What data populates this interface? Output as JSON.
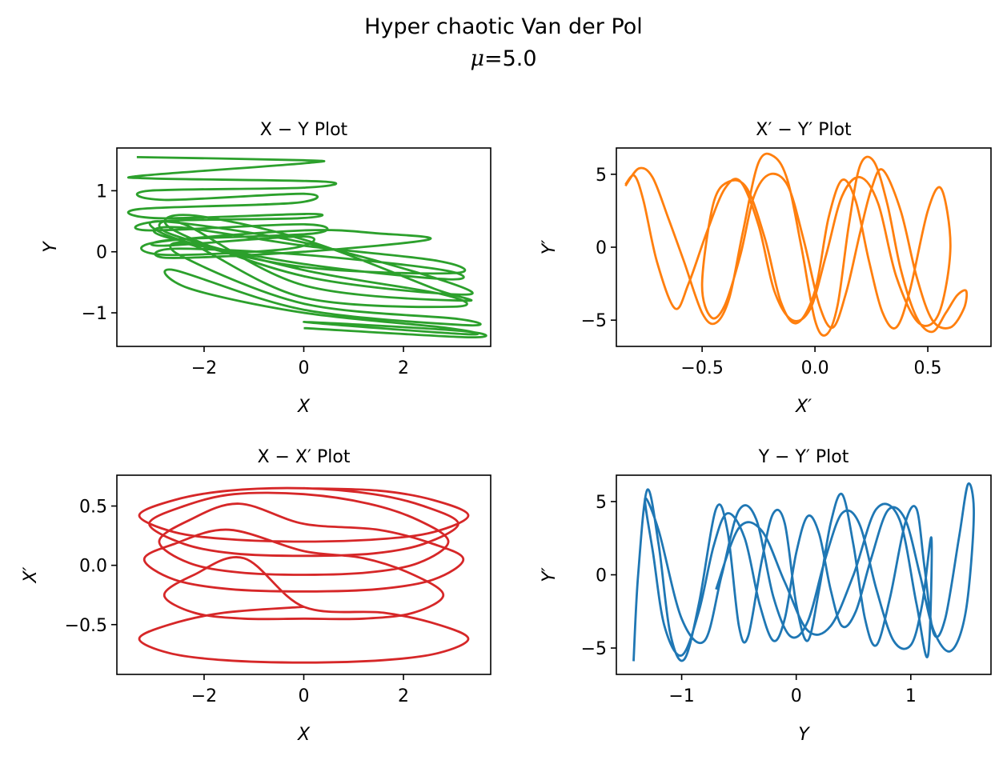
{
  "suptitle": {
    "line1": "Hyper chaotic Van der Pol",
    "mu_symbol": "μ",
    "mu_rest": "=5.0"
  },
  "chart_data": [
    {
      "type": "line",
      "title": "X − Y Plot",
      "xlabel": "X",
      "ylabel": "Y",
      "xlim": [
        -3.75,
        3.75
      ],
      "ylim": [
        -1.55,
        1.7
      ],
      "xticks": [
        -2,
        0,
        2
      ],
      "xtick_labels": [
        "−2",
        "0",
        "2"
      ],
      "yticks": [
        -1,
        0,
        1
      ],
      "ytick_labels": [
        "−1",
        "0",
        "1"
      ],
      "color": "#2ca02c",
      "series": [
        {
          "x": [
            -3.35,
            0.0,
            0.0,
            -3.2,
            -3.0,
            0.4,
            0.0,
            -3.1,
            -2.8,
            0.0,
            -0.2,
            -3.3,
            -2.9,
            0.1,
            -0.1,
            -2.9,
            -3.1,
            0.0,
            0.2,
            -2.6,
            -2.8,
            0.0,
            -0.3,
            -2.8,
            -3.0,
            0.0,
            1.5,
            2.5,
            0.0,
            -2.7,
            -2.6,
            0.0,
            2.8,
            2.9,
            0.0,
            -2.8,
            -2.5,
            0.0,
            2.7,
            3.0,
            0.0,
            -2.5,
            -2.9,
            0.0,
            2.9,
            3.1,
            0.0,
            -2.6,
            -2.3,
            0.0,
            2.6,
            3.2,
            0.0,
            -2.4,
            -2.7,
            0.0,
            2.8,
            3.0,
            0.0,
            -2.2,
            -2.5,
            0.0,
            3.1,
            3.2,
            0.0,
            -2.6,
            -2.3,
            0.0,
            2.9,
            3.25,
            0.0,
            3.2,
            3.3,
            0.0
          ],
          "y": [
            1.55,
            1.5,
            1.45,
            1.25,
            1.2,
            1.15,
            1.05,
            1.0,
            0.85,
            0.95,
            0.8,
            0.7,
            0.55,
            0.62,
            0.55,
            0.5,
            0.35,
            0.45,
            0.3,
            0.2,
            0.1,
            0.25,
            0.05,
            -0.05,
            0.15,
            0.35,
            0.3,
            0.2,
            0.0,
            -0.1,
            0.05,
            -0.05,
            -0.3,
            -0.45,
            -0.2,
            0.25,
            0.4,
            0.1,
            -0.15,
            -0.35,
            -0.25,
            0.2,
            0.5,
            0.15,
            -0.5,
            -0.7,
            -0.4,
            0.35,
            0.6,
            0.2,
            -0.6,
            -0.8,
            -0.55,
            0.45,
            0.3,
            -0.3,
            -0.7,
            -0.9,
            -0.75,
            0.1,
            -0.05,
            -0.85,
            -1.1,
            -1.2,
            -0.95,
            -0.3,
            -0.6,
            -1.0,
            -1.25,
            -1.35,
            -1.15,
            -1.3,
            -1.4,
            -1.25
          ]
        }
      ]
    },
    {
      "type": "line",
      "title": "X′ − Y′ Plot",
      "xlabel": "X′",
      "ylabel": "Y′",
      "xlim": [
        -0.88,
        0.78
      ],
      "ylim": [
        -6.8,
        6.8
      ],
      "xticks": [
        -0.5,
        0.0,
        0.5
      ],
      "xtick_labels": [
        "−0.5",
        "0.0",
        "0.5"
      ],
      "yticks": [
        -5,
        0,
        5
      ],
      "ytick_labels": [
        "−5",
        "0",
        "5"
      ],
      "color": "#ff7f0e",
      "series": [
        {
          "x": [
            -0.84,
            -0.78,
            -0.72,
            -0.65,
            -0.58,
            -0.5,
            -0.44,
            -0.38,
            -0.32,
            -0.25,
            -0.18,
            -0.12,
            -0.06,
            0.0,
            0.05,
            0.1,
            0.15,
            0.2,
            0.26,
            0.32,
            0.38,
            0.45,
            0.52,
            0.58,
            0.63,
            0.67,
            0.66,
            0.6,
            0.52,
            0.45,
            0.38,
            0.3,
            0.25,
            0.2,
            0.14,
            0.08,
            0.02,
            -0.05,
            -0.12,
            -0.2,
            -0.27,
            -0.33,
            -0.4,
            -0.46,
            -0.5,
            -0.45,
            -0.38,
            -0.3,
            -0.22,
            -0.15,
            -0.08,
            0.0,
            0.06,
            0.12,
            0.18,
            0.24,
            0.3,
            0.36,
            0.42,
            0.5,
            0.56,
            0.6,
            0.55,
            0.46,
            0.36,
            0.28,
            0.2,
            0.12,
            0.05,
            -0.02,
            -0.1,
            -0.18,
            -0.25,
            -0.33,
            -0.4,
            -0.48,
            -0.56,
            -0.62,
            -0.7,
            -0.76,
            -0.8,
            -0.84
          ],
          "y": [
            4.2,
            5.4,
            4.8,
            2.0,
            -1.0,
            -4.5,
            -5.2,
            -3.5,
            1.0,
            5.8,
            6.2,
            4.5,
            0.0,
            -5.0,
            -6.0,
            -4.0,
            1.5,
            5.6,
            5.9,
            3.0,
            -1.5,
            -4.8,
            -5.8,
            -4.5,
            -3.3,
            -3.0,
            -4.2,
            -5.5,
            -5.0,
            -2.0,
            2.5,
            5.3,
            4.0,
            1.0,
            -3.0,
            -5.5,
            -4.0,
            0.5,
            4.2,
            5.0,
            3.5,
            -0.5,
            -4.0,
            -4.8,
            -2.5,
            3.0,
            4.5,
            4.0,
            0.5,
            -3.8,
            -5.2,
            -3.0,
            2.0,
            4.6,
            3.2,
            -1.0,
            -4.5,
            -5.5,
            -3.0,
            2.5,
            4.0,
            0.0,
            -4.5,
            -5.2,
            -2.0,
            3.0,
            4.8,
            3.5,
            -0.5,
            -4.2,
            -5.0,
            -3.0,
            1.5,
            4.5,
            4.0,
            1.0,
            -2.5,
            -4.2,
            -1.0,
            3.2,
            4.9,
            4.3
          ]
        }
      ]
    },
    {
      "type": "line",
      "title": "X − X′ Plot",
      "xlabel": "X",
      "ylabel": "X′",
      "xlim": [
        -3.75,
        3.75
      ],
      "ylim": [
        -0.92,
        0.76
      ],
      "xticks": [
        -2,
        0,
        2
      ],
      "xtick_labels": [
        "−2",
        "0",
        "2"
      ],
      "yticks": [
        -0.5,
        0.0,
        0.5
      ],
      "ytick_labels": [
        "−0.5",
        "0.0",
        "0.5"
      ],
      "color": "#d62728",
      "series": [
        {
          "x": [
            0.0,
            1.5,
            2.6,
            3.3,
            2.6,
            1.5,
            0.0,
            -1.5,
            -2.6,
            -3.3,
            -2.6,
            -1.5,
            0.0,
            1.4,
            2.4,
            3.1,
            2.4,
            1.4,
            0.0,
            -1.4,
            -2.4,
            -3.1,
            -2.4,
            -1.4,
            0.0,
            1.3,
            2.3,
            2.9,
            2.3,
            1.3,
            0.0,
            -1.3,
            -2.3,
            -2.9,
            -2.3,
            -1.3,
            0.0,
            1.5,
            2.6,
            3.2,
            2.6,
            1.5,
            0.0,
            -1.5,
            -2.6,
            -3.2,
            -2.6,
            -1.5,
            0.0,
            1.2,
            2.2,
            2.8,
            2.2,
            1.2,
            0.0,
            -1.2,
            -2.2,
            -2.8,
            -2.2,
            -1.2,
            0.0,
            1.6,
            2.7,
            3.3,
            2.7,
            1.6,
            0.0,
            -1.6,
            -2.7,
            -3.3,
            -2.7,
            -1.6,
            0.0
          ],
          "y": [
            0.65,
            0.63,
            0.55,
            0.42,
            0.28,
            0.22,
            0.2,
            0.22,
            0.28,
            0.42,
            0.55,
            0.63,
            0.65,
            0.6,
            0.5,
            0.35,
            0.18,
            0.1,
            0.08,
            0.1,
            0.18,
            0.35,
            0.5,
            0.6,
            0.6,
            0.52,
            0.38,
            0.2,
            0.02,
            -0.06,
            -0.08,
            -0.06,
            0.02,
            0.2,
            0.38,
            0.52,
            0.35,
            0.3,
            0.18,
            0.05,
            -0.12,
            -0.2,
            -0.22,
            -0.2,
            -0.12,
            0.05,
            0.18,
            0.3,
            0.12,
            0.06,
            -0.08,
            -0.25,
            -0.4,
            -0.45,
            -0.45,
            -0.45,
            -0.4,
            -0.25,
            -0.08,
            0.06,
            -0.35,
            -0.4,
            -0.5,
            -0.62,
            -0.74,
            -0.8,
            -0.82,
            -0.8,
            -0.74,
            -0.62,
            -0.5,
            -0.4,
            -0.35
          ]
        }
      ]
    },
    {
      "type": "line",
      "title": "Y − Y′ Plot",
      "xlabel": "Y",
      "ylabel": "Y′",
      "xlim": [
        -1.57,
        1.7
      ],
      "ylim": [
        -6.8,
        6.8
      ],
      "xticks": [
        -1,
        0,
        1
      ],
      "xtick_labels": [
        "−1",
        "0",
        "1"
      ],
      "yticks": [
        -5,
        0,
        5
      ],
      "ytick_labels": [
        "−5",
        "0",
        "5"
      ],
      "color": "#1f77b4",
      "series": [
        {
          "x": [
            -1.42,
            -1.38,
            -1.3,
            -1.2,
            -1.1,
            -0.98,
            -0.85,
            -0.7,
            -0.6,
            -0.5,
            -0.42,
            -0.3,
            -0.2,
            -0.1,
            0.0,
            0.1,
            0.2,
            0.3,
            0.4,
            0.5,
            0.6,
            0.7,
            0.82,
            0.95,
            1.05,
            1.12,
            1.2,
            1.3,
            1.42,
            1.5,
            1.55,
            1.48,
            1.35,
            1.2,
            1.08,
            0.95,
            0.8,
            0.65,
            0.52,
            0.4,
            0.3,
            0.2,
            0.1,
            0.0,
            -0.1,
            -0.2,
            -0.32,
            -0.45,
            -0.6,
            -0.72,
            -0.85,
            -1.0,
            -1.15,
            -1.25,
            -1.32,
            -1.2,
            -1.0,
            -0.8,
            -0.65,
            -0.5,
            -0.35,
            -0.2,
            -0.05,
            0.1,
            0.25,
            0.4,
            0.55,
            0.7,
            0.85,
            1.0,
            1.1,
            1.18,
            1.15,
            1.05,
            0.9,
            0.7,
            0.5,
            0.3,
            0.1,
            -0.1,
            -0.3,
            -0.5,
            -0.7
          ],
          "y": [
            -5.9,
            0.0,
            5.8,
            2.0,
            -4.0,
            -5.8,
            -2.0,
            4.5,
            3.0,
            -3.5,
            -4.2,
            1.0,
            4.2,
            3.5,
            -2.0,
            -4.5,
            -1.0,
            3.5,
            5.5,
            2.0,
            -3.0,
            -4.8,
            -1.5,
            3.5,
            4.5,
            0.5,
            -4.0,
            -3.0,
            2.5,
            6.2,
            4.0,
            -2.5,
            -5.2,
            -3.8,
            0.0,
            3.8,
            4.4,
            1.0,
            -2.5,
            -3.5,
            -1.0,
            2.8,
            4.0,
            1.5,
            -3.0,
            -4.5,
            -2.0,
            2.5,
            4.2,
            2.0,
            -2.5,
            -5.5,
            -3.5,
            1.5,
            5.2,
            3.0,
            -3.0,
            -4.5,
            0.0,
            4.4,
            3.8,
            -1.5,
            -4.2,
            -3.2,
            1.0,
            4.2,
            3.5,
            -1.0,
            -4.5,
            -4.8,
            -2.0,
            2.5,
            -5.5,
            -2.0,
            3.8,
            4.5,
            0.0,
            -3.5,
            -3.8,
            -0.5,
            3.0,
            3.2,
            -1.0
          ]
        }
      ]
    }
  ]
}
